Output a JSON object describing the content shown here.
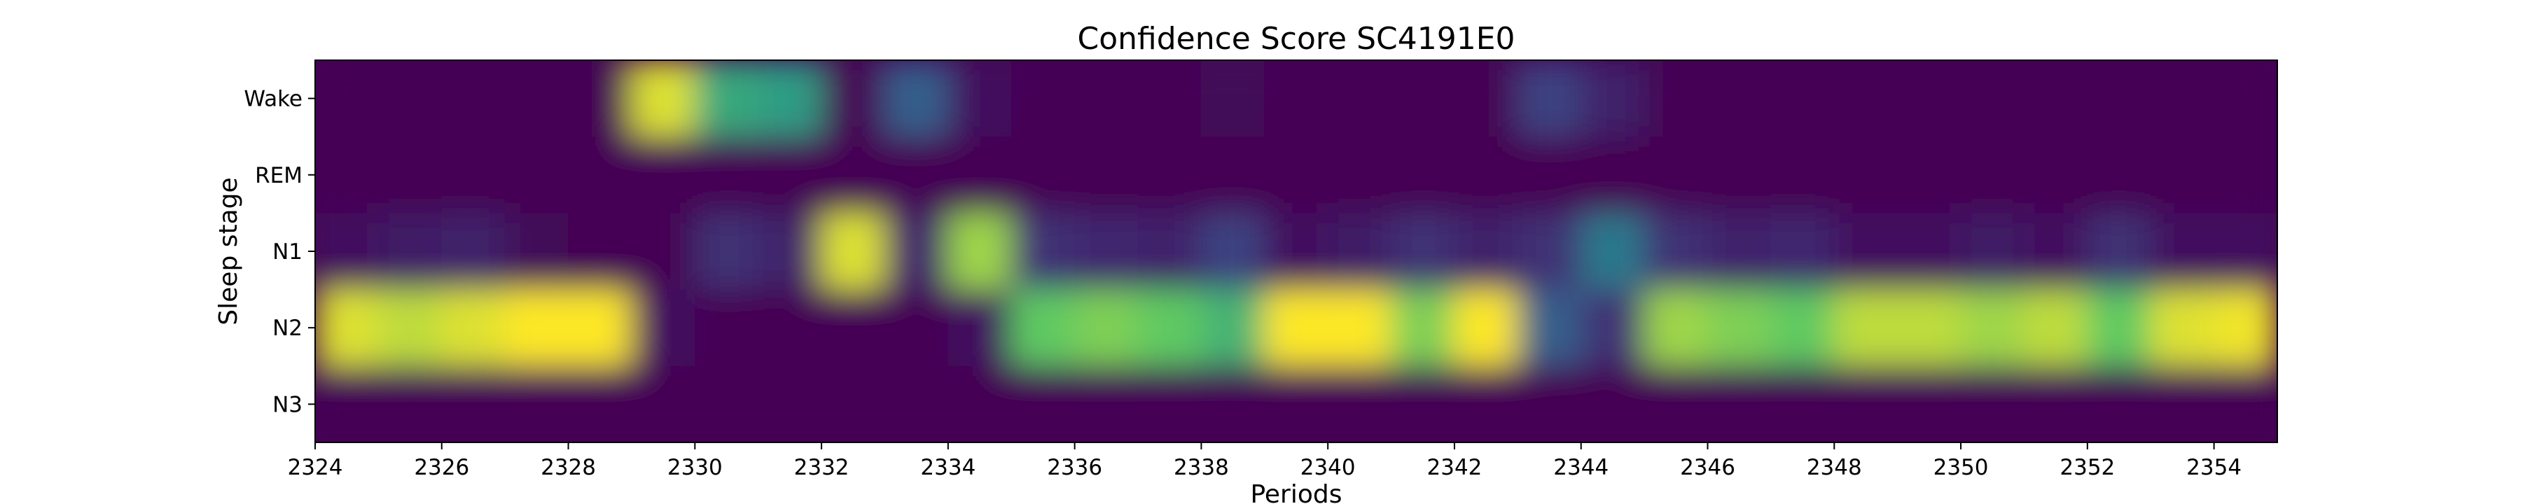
{
  "chart_data": {
    "type": "heatmap",
    "title": "Confidence Score SC4191E0",
    "xlabel": "Periods",
    "ylabel": "Sleep stage",
    "xlim": [
      2324,
      2355
    ],
    "x_ticks": [
      "2324",
      "2326",
      "2328",
      "2330",
      "2332",
      "2334",
      "2336",
      "2338",
      "2340",
      "2342",
      "2344",
      "2346",
      "2348",
      "2350",
      "2352",
      "2354"
    ],
    "y_categories": [
      "Wake",
      "REM",
      "N1",
      "N2",
      "N3"
    ],
    "periods": [
      2324,
      2325,
      2326,
      2327,
      2328,
      2329,
      2330,
      2331,
      2332,
      2333,
      2334,
      2335,
      2336,
      2337,
      2338,
      2339,
      2340,
      2341,
      2342,
      2343,
      2344,
      2345,
      2346,
      2347,
      2348,
      2349,
      2350,
      2351,
      2352,
      2353,
      2354
    ],
    "values": {
      "Wake": [
        0.0,
        0.0,
        0.0,
        0.0,
        0.0,
        0.95,
        0.6,
        0.55,
        0.0,
        0.3,
        0.05,
        0.0,
        0.0,
        0.0,
        0.02,
        0.0,
        0.0,
        0.0,
        0.0,
        0.2,
        0.1,
        0.0,
        0.0,
        0.0,
        0.0,
        0.0,
        0.0,
        0.0,
        0.0,
        0.0,
        0.0
      ],
      "REM": [
        0.0,
        0.0,
        0.0,
        0.0,
        0.0,
        0.0,
        0.0,
        0.0,
        0.0,
        0.0,
        0.0,
        0.0,
        0.0,
        0.0,
        0.0,
        0.0,
        0.0,
        0.0,
        0.0,
        0.0,
        0.0,
        0.0,
        0.0,
        0.0,
        0.0,
        0.0,
        0.0,
        0.0,
        0.0,
        0.0,
        0.0
      ],
      "N1": [
        0.05,
        0.08,
        0.1,
        0.02,
        0.0,
        0.0,
        0.15,
        0.1,
        0.95,
        0.1,
        0.85,
        0.15,
        0.12,
        0.1,
        0.2,
        0.05,
        0.08,
        0.15,
        0.1,
        0.15,
        0.4,
        0.15,
        0.1,
        0.12,
        0.05,
        0.05,
        0.08,
        0.05,
        0.15,
        0.05,
        0.05
      ],
      "N2": [
        0.95,
        0.9,
        0.95,
        1.0,
        1.0,
        0.05,
        0.0,
        0.0,
        0.0,
        0.0,
        0.05,
        0.75,
        0.8,
        0.75,
        0.65,
        1.0,
        1.0,
        0.8,
        1.0,
        0.3,
        0.15,
        0.85,
        0.8,
        0.75,
        0.9,
        0.9,
        0.85,
        0.9,
        0.75,
        0.95,
        0.98
      ],
      "N3": [
        0.0,
        0.0,
        0.0,
        0.0,
        0.0,
        0.0,
        0.0,
        0.0,
        0.0,
        0.0,
        0.0,
        0.0,
        0.0,
        0.0,
        0.0,
        0.0,
        0.0,
        0.0,
        0.0,
        0.0,
        0.0,
        0.0,
        0.0,
        0.0,
        0.0,
        0.0,
        0.0,
        0.0,
        0.0,
        0.0,
        0.0
      ]
    },
    "colormap": "viridis",
    "grid": false,
    "legend": "none"
  }
}
